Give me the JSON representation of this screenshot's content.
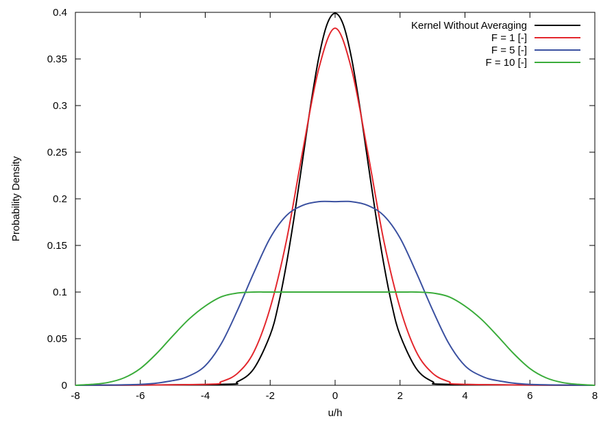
{
  "chart_data": {
    "type": "line",
    "title": "",
    "xlabel": "u/h",
    "ylabel": "Probability Density",
    "xlim": [
      -8,
      8
    ],
    "ylim": [
      0,
      0.4
    ],
    "xticks": [
      -8,
      -6,
      -4,
      -2,
      0,
      2,
      4,
      6,
      8
    ],
    "xtick_labels": [
      "-8",
      "-6",
      "-4",
      "-2",
      "0",
      "2",
      "4",
      "6",
      "8"
    ],
    "yticks": [
      0,
      0.05,
      0.1,
      0.15,
      0.2,
      0.25,
      0.3,
      0.35,
      0.4
    ],
    "ytick_labels": [
      "0",
      "0.05",
      "0.1",
      "0.15",
      "0.2",
      "0.25",
      "0.3",
      "0.35",
      "0.4"
    ],
    "grid": false,
    "legend_position": "top-right",
    "series": [
      {
        "name": "Kernel Without Averaging",
        "color": "#000000",
        "x": [
          -8,
          -3.5,
          -3,
          -2.5,
          -2,
          -1.75,
          -1.5,
          -1.25,
          -1,
          -0.75,
          -0.5,
          -0.25,
          0,
          0.25,
          0.5,
          0.75,
          1,
          1.25,
          1.5,
          1.75,
          2,
          2.5,
          3,
          3.5,
          8
        ],
        "y": [
          0,
          0.001,
          0.004,
          0.018,
          0.054,
          0.086,
          0.13,
          0.183,
          0.242,
          0.301,
          0.352,
          0.387,
          0.399,
          0.387,
          0.352,
          0.301,
          0.242,
          0.183,
          0.13,
          0.086,
          0.054,
          0.018,
          0.004,
          0.001,
          0
        ]
      },
      {
        "name": "F = 1 [-]",
        "color": "#e3262c",
        "x": [
          -8,
          -4,
          -3.5,
          -3,
          -2.5,
          -2,
          -1.5,
          -1,
          -0.5,
          0,
          0.5,
          1,
          1.5,
          2,
          2.5,
          3,
          3.5,
          4,
          8
        ],
        "y": [
          0,
          0.001,
          0.004,
          0.013,
          0.036,
          0.083,
          0.155,
          0.251,
          0.34,
          0.383,
          0.34,
          0.251,
          0.155,
          0.083,
          0.036,
          0.013,
          0.004,
          0.001,
          0
        ]
      },
      {
        "name": "F = 5 [-]",
        "color": "#3a50a0",
        "x": [
          -8,
          -6,
          -5,
          -4.5,
          -4,
          -3.5,
          -3,
          -2.5,
          -2,
          -1.5,
          -1,
          -0.5,
          0,
          0.5,
          1,
          1.5,
          2,
          2.5,
          3,
          3.5,
          4,
          4.5,
          5,
          6,
          8
        ],
        "y": [
          0,
          0.001,
          0.005,
          0.01,
          0.021,
          0.045,
          0.081,
          0.121,
          0.158,
          0.182,
          0.193,
          0.197,
          0.197,
          0.197,
          0.193,
          0.182,
          0.158,
          0.121,
          0.081,
          0.045,
          0.021,
          0.01,
          0.005,
          0.001,
          0
        ]
      },
      {
        "name": "F = 10 [-]",
        "color": "#3aac3a",
        "x": [
          -8,
          -7.5,
          -7,
          -6.5,
          -6,
          -5.5,
          -5,
          -4.5,
          -4,
          -3.5,
          -3,
          -2.5,
          -2,
          -1,
          0,
          1,
          2,
          2.5,
          3,
          3.5,
          4,
          4.5,
          5,
          5.5,
          6,
          6.5,
          7,
          7.5,
          8
        ],
        "y": [
          0,
          0.001,
          0.003,
          0.008,
          0.018,
          0.034,
          0.053,
          0.071,
          0.085,
          0.095,
          0.099,
          0.1,
          0.1,
          0.1,
          0.1,
          0.1,
          0.1,
          0.1,
          0.099,
          0.095,
          0.085,
          0.071,
          0.053,
          0.034,
          0.018,
          0.008,
          0.003,
          0.001,
          0
        ]
      }
    ]
  }
}
